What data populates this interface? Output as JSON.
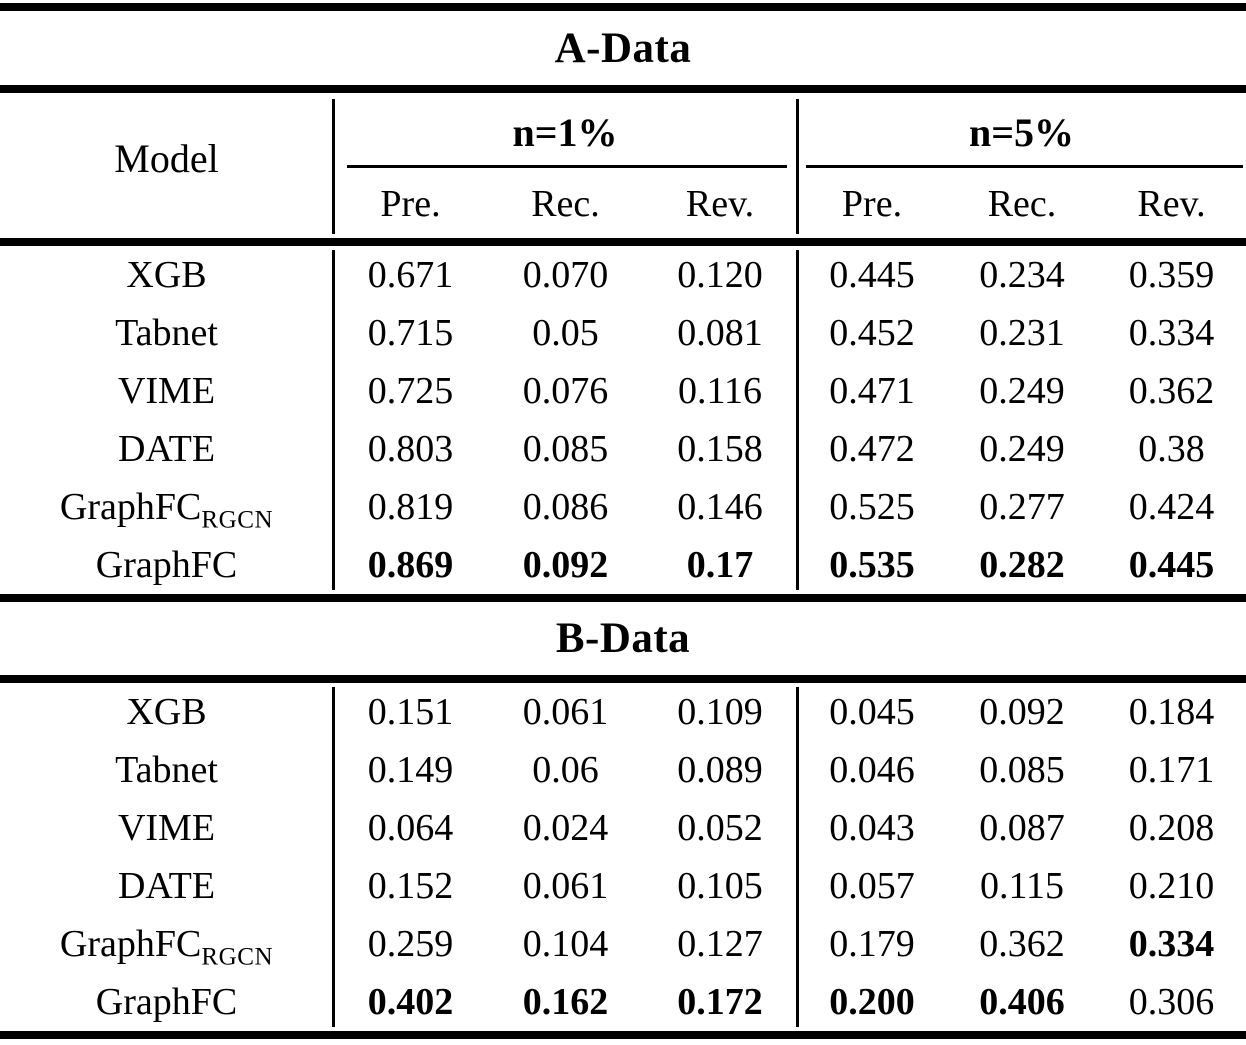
{
  "table": {
    "header": {
      "model_label": "Model",
      "group1_label": "n=1%",
      "group2_label": "n=5%",
      "subcolumns": [
        "Pre.",
        "Rec.",
        "Rev."
      ]
    },
    "sections": [
      {
        "title": "A-Data",
        "rows": [
          {
            "model": "XGB",
            "model_sub": "",
            "values": [
              "0.671",
              "0.070",
              "0.120",
              "0.445",
              "0.234",
              "0.359"
            ],
            "bold": [
              false,
              false,
              false,
              false,
              false,
              false
            ]
          },
          {
            "model": "Tabnet",
            "model_sub": "",
            "values": [
              "0.715",
              "0.05",
              "0.081",
              "0.452",
              "0.231",
              "0.334"
            ],
            "bold": [
              false,
              false,
              false,
              false,
              false,
              false
            ]
          },
          {
            "model": "VIME",
            "model_sub": "",
            "values": [
              "0.725",
              "0.076",
              "0.116",
              "0.471",
              "0.249",
              "0.362"
            ],
            "bold": [
              false,
              false,
              false,
              false,
              false,
              false
            ]
          },
          {
            "model": "DATE",
            "model_sub": "",
            "values": [
              "0.803",
              "0.085",
              "0.158",
              "0.472",
              "0.249",
              "0.38"
            ],
            "bold": [
              false,
              false,
              false,
              false,
              false,
              false
            ]
          },
          {
            "model": "GraphFC",
            "model_sub": "RGCN",
            "values": [
              "0.819",
              "0.086",
              "0.146",
              "0.525",
              "0.277",
              "0.424"
            ],
            "bold": [
              false,
              false,
              false,
              false,
              false,
              false
            ]
          },
          {
            "model": "GraphFC",
            "model_sub": "",
            "values": [
              "0.869",
              "0.092",
              "0.17",
              "0.535",
              "0.282",
              "0.445"
            ],
            "bold": [
              true,
              true,
              true,
              true,
              true,
              true
            ]
          }
        ]
      },
      {
        "title": "B-Data",
        "rows": [
          {
            "model": "XGB",
            "model_sub": "",
            "values": [
              "0.151",
              "0.061",
              "0.109",
              "0.045",
              "0.092",
              "0.184"
            ],
            "bold": [
              false,
              false,
              false,
              false,
              false,
              false
            ]
          },
          {
            "model": "Tabnet",
            "model_sub": "",
            "values": [
              "0.149",
              "0.06",
              "0.089",
              "0.046",
              "0.085",
              "0.171"
            ],
            "bold": [
              false,
              false,
              false,
              false,
              false,
              false
            ]
          },
          {
            "model": "VIME",
            "model_sub": "",
            "values": [
              "0.064",
              "0.024",
              "0.052",
              "0.043",
              "0.087",
              "0.208"
            ],
            "bold": [
              false,
              false,
              false,
              false,
              false,
              false
            ]
          },
          {
            "model": "DATE",
            "model_sub": "",
            "values": [
              "0.152",
              "0.061",
              "0.105",
              "0.057",
              "0.115",
              "0.210"
            ],
            "bold": [
              false,
              false,
              false,
              false,
              false,
              false
            ]
          },
          {
            "model": "GraphFC",
            "model_sub": "RGCN",
            "values": [
              "0.259",
              "0.104",
              "0.127",
              "0.179",
              "0.362",
              "0.334"
            ],
            "bold": [
              false,
              false,
              false,
              false,
              false,
              true
            ]
          },
          {
            "model": "GraphFC",
            "model_sub": "",
            "values": [
              "0.402",
              "0.162",
              "0.172",
              "0.200",
              "0.406",
              "0.306"
            ],
            "bold": [
              true,
              true,
              true,
              true,
              true,
              false
            ]
          }
        ]
      }
    ]
  }
}
